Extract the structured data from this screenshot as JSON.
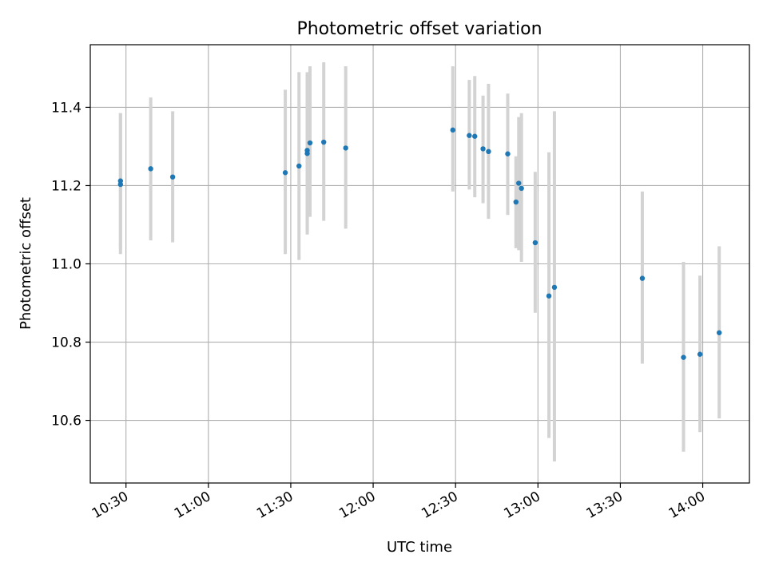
{
  "chart_data": {
    "type": "scatter",
    "title": "Photometric offset variation",
    "xlabel": "UTC time",
    "ylabel": "Photometric offset",
    "x_ticks": [
      "10:30",
      "11:00",
      "11:30",
      "12:00",
      "12:30",
      "13:00",
      "13:30",
      "14:00"
    ],
    "y_ticks": [
      "10.6",
      "10.8",
      "11.0",
      "11.2",
      "11.4"
    ],
    "y_tick_values": [
      10.6,
      10.8,
      11.0,
      11.2,
      11.4
    ],
    "xlim": [
      "10:17",
      "14:17"
    ],
    "ylim": [
      10.44,
      11.56
    ],
    "grid": true,
    "colors": {
      "point": "#1f77b4",
      "errorbar": "#d3d3d3",
      "grid": "#b0b0b0",
      "axes": "#000000"
    },
    "series": [
      {
        "points": [
          {
            "x": "10:28",
            "y": 11.212,
            "y_low": 11.04,
            "y_high": 11.385
          },
          {
            "x": "10:28",
            "y": 11.203,
            "y_low": 11.025,
            "y_high": 11.385
          },
          {
            "x": "10:39",
            "y": 11.243,
            "y_low": 11.06,
            "y_high": 11.425
          },
          {
            "x": "10:47",
            "y": 11.222,
            "y_low": 11.055,
            "y_high": 11.39
          },
          {
            "x": "11:28",
            "y": 11.233,
            "y_low": 11.025,
            "y_high": 11.445
          },
          {
            "x": "11:33",
            "y": 11.25,
            "y_low": 11.01,
            "y_high": 11.49
          },
          {
            "x": "11:36",
            "y": 11.282,
            "y_low": 11.075,
            "y_high": 11.485
          },
          {
            "x": "11:36",
            "y": 11.29,
            "y_low": 11.085,
            "y_high": 11.49
          },
          {
            "x": "11:37",
            "y": 11.309,
            "y_low": 11.12,
            "y_high": 11.505
          },
          {
            "x": "11:42",
            "y": 11.311,
            "y_low": 11.11,
            "y_high": 11.515
          },
          {
            "x": "11:50",
            "y": 11.296,
            "y_low": 11.09,
            "y_high": 11.505
          },
          {
            "x": "12:29",
            "y": 11.342,
            "y_low": 11.185,
            "y_high": 11.505
          },
          {
            "x": "12:35",
            "y": 11.328,
            "y_low": 11.19,
            "y_high": 11.47
          },
          {
            "x": "12:37",
            "y": 11.326,
            "y_low": 11.17,
            "y_high": 11.48
          },
          {
            "x": "12:40",
            "y": 11.294,
            "y_low": 11.155,
            "y_high": 11.43
          },
          {
            "x": "12:42",
            "y": 11.287,
            "y_low": 11.115,
            "y_high": 11.46
          },
          {
            "x": "12:49",
            "y": 11.281,
            "y_low": 11.125,
            "y_high": 11.435
          },
          {
            "x": "12:52",
            "y": 11.158,
            "y_low": 11.04,
            "y_high": 11.275
          },
          {
            "x": "12:53",
            "y": 11.206,
            "y_low": 11.035,
            "y_high": 11.375
          },
          {
            "x": "12:54",
            "y": 11.193,
            "y_low": 11.005,
            "y_high": 11.385
          },
          {
            "x": "12:59",
            "y": 11.054,
            "y_low": 10.875,
            "y_high": 11.235
          },
          {
            "x": "13:04",
            "y": 10.918,
            "y_low": 10.555,
            "y_high": 11.285
          },
          {
            "x": "13:06",
            "y": 10.94,
            "y_low": 10.495,
            "y_high": 11.39
          },
          {
            "x": "13:38",
            "y": 10.963,
            "y_low": 10.745,
            "y_high": 11.185
          },
          {
            "x": "13:53",
            "y": 10.761,
            "y_low": 10.52,
            "y_high": 11.005
          },
          {
            "x": "13:59",
            "y": 10.769,
            "y_low": 10.57,
            "y_high": 10.97
          },
          {
            "x": "14:06",
            "y": 10.824,
            "y_low": 10.605,
            "y_high": 11.045
          }
        ]
      }
    ]
  }
}
